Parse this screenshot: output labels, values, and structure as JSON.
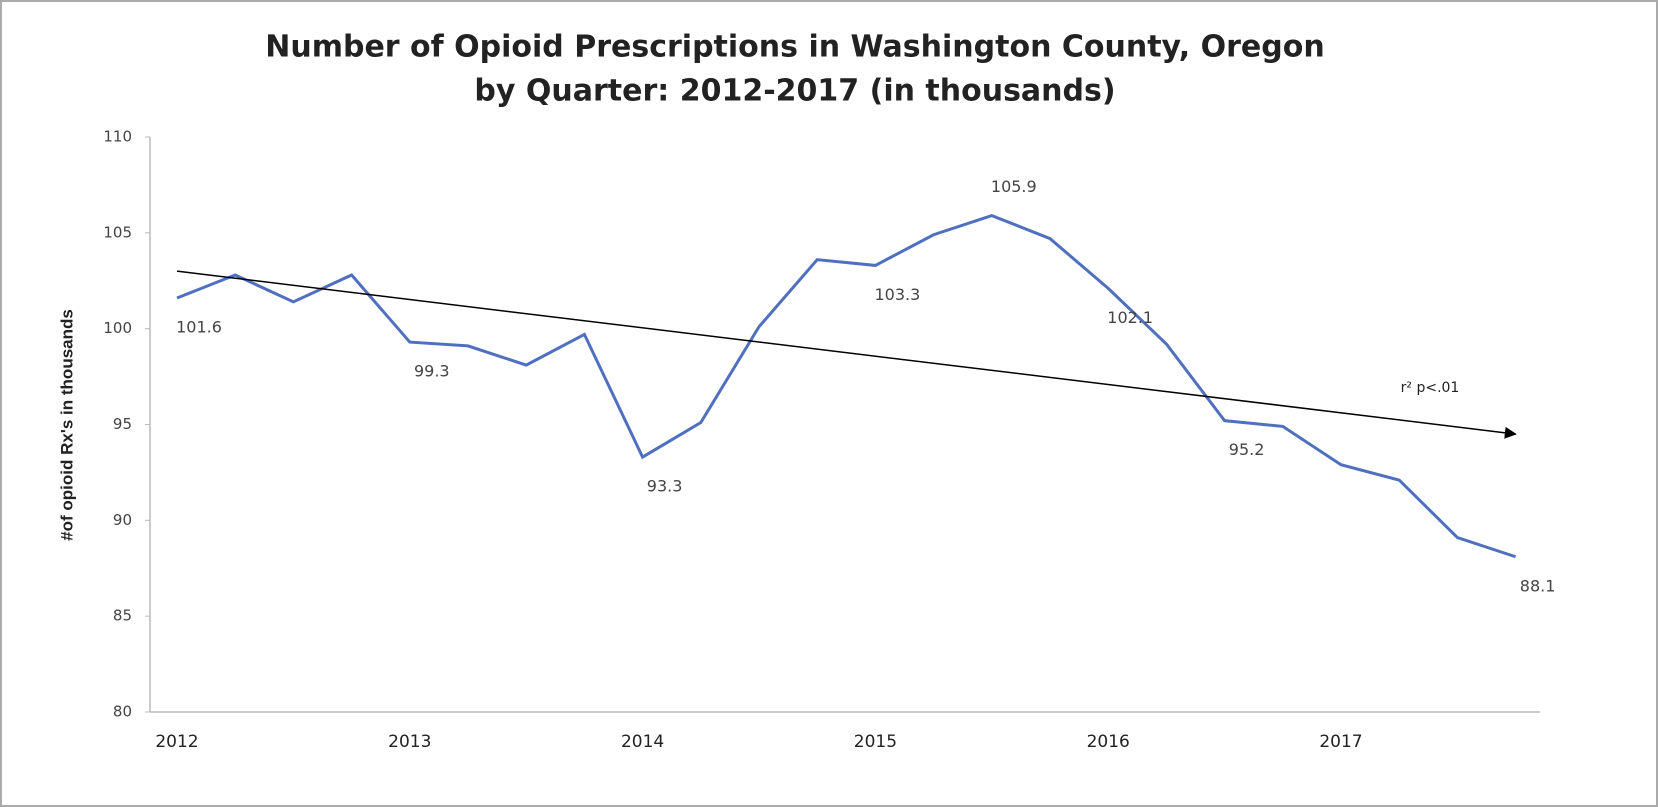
{
  "chart_data": {
    "type": "line",
    "title": "Number of Opioid Prescriptions in Washington County, Oregon",
    "subtitle": "by Quarter: 2012-2017 (in thousands)",
    "y_label": "#of opioid Rx's in thousands",
    "annotation": "r² p<.01",
    "categories": [
      "2012",
      null,
      null,
      null,
      "2013",
      null,
      null,
      null,
      "2014",
      null,
      null,
      null,
      "2015",
      null,
      null,
      null,
      "2016",
      null,
      null,
      null,
      "2017",
      null,
      null,
      null
    ],
    "series": [
      {
        "name": "Opioid prescriptions",
        "color": "#4f6fbf",
        "values": [
          101.6,
          102.8,
          101.4,
          102.8,
          99.3,
          99.1,
          98.1,
          99.7,
          93.3,
          95.1,
          100.1,
          103.6,
          103.3,
          104.9,
          105.9,
          104.7,
          102.1,
          99.2,
          95.2,
          94.9,
          92.9,
          92.1,
          89.1,
          88.1
        ],
        "value_labels": [
          "101.6",
          null,
          null,
          null,
          "99.3",
          null,
          null,
          null,
          "93.3",
          null,
          null,
          null,
          "103.3",
          null,
          "105.9",
          null,
          "102.1",
          null,
          "95.2",
          null,
          null,
          null,
          null,
          "88.1"
        ]
      }
    ],
    "trend": {
      "color": "#000000",
      "values": [
        103.0,
        94.5
      ]
    },
    "ylim": [
      80,
      110
    ],
    "yticks": [
      80,
      85,
      90,
      95,
      100,
      105,
      110
    ],
    "grid": false
  }
}
